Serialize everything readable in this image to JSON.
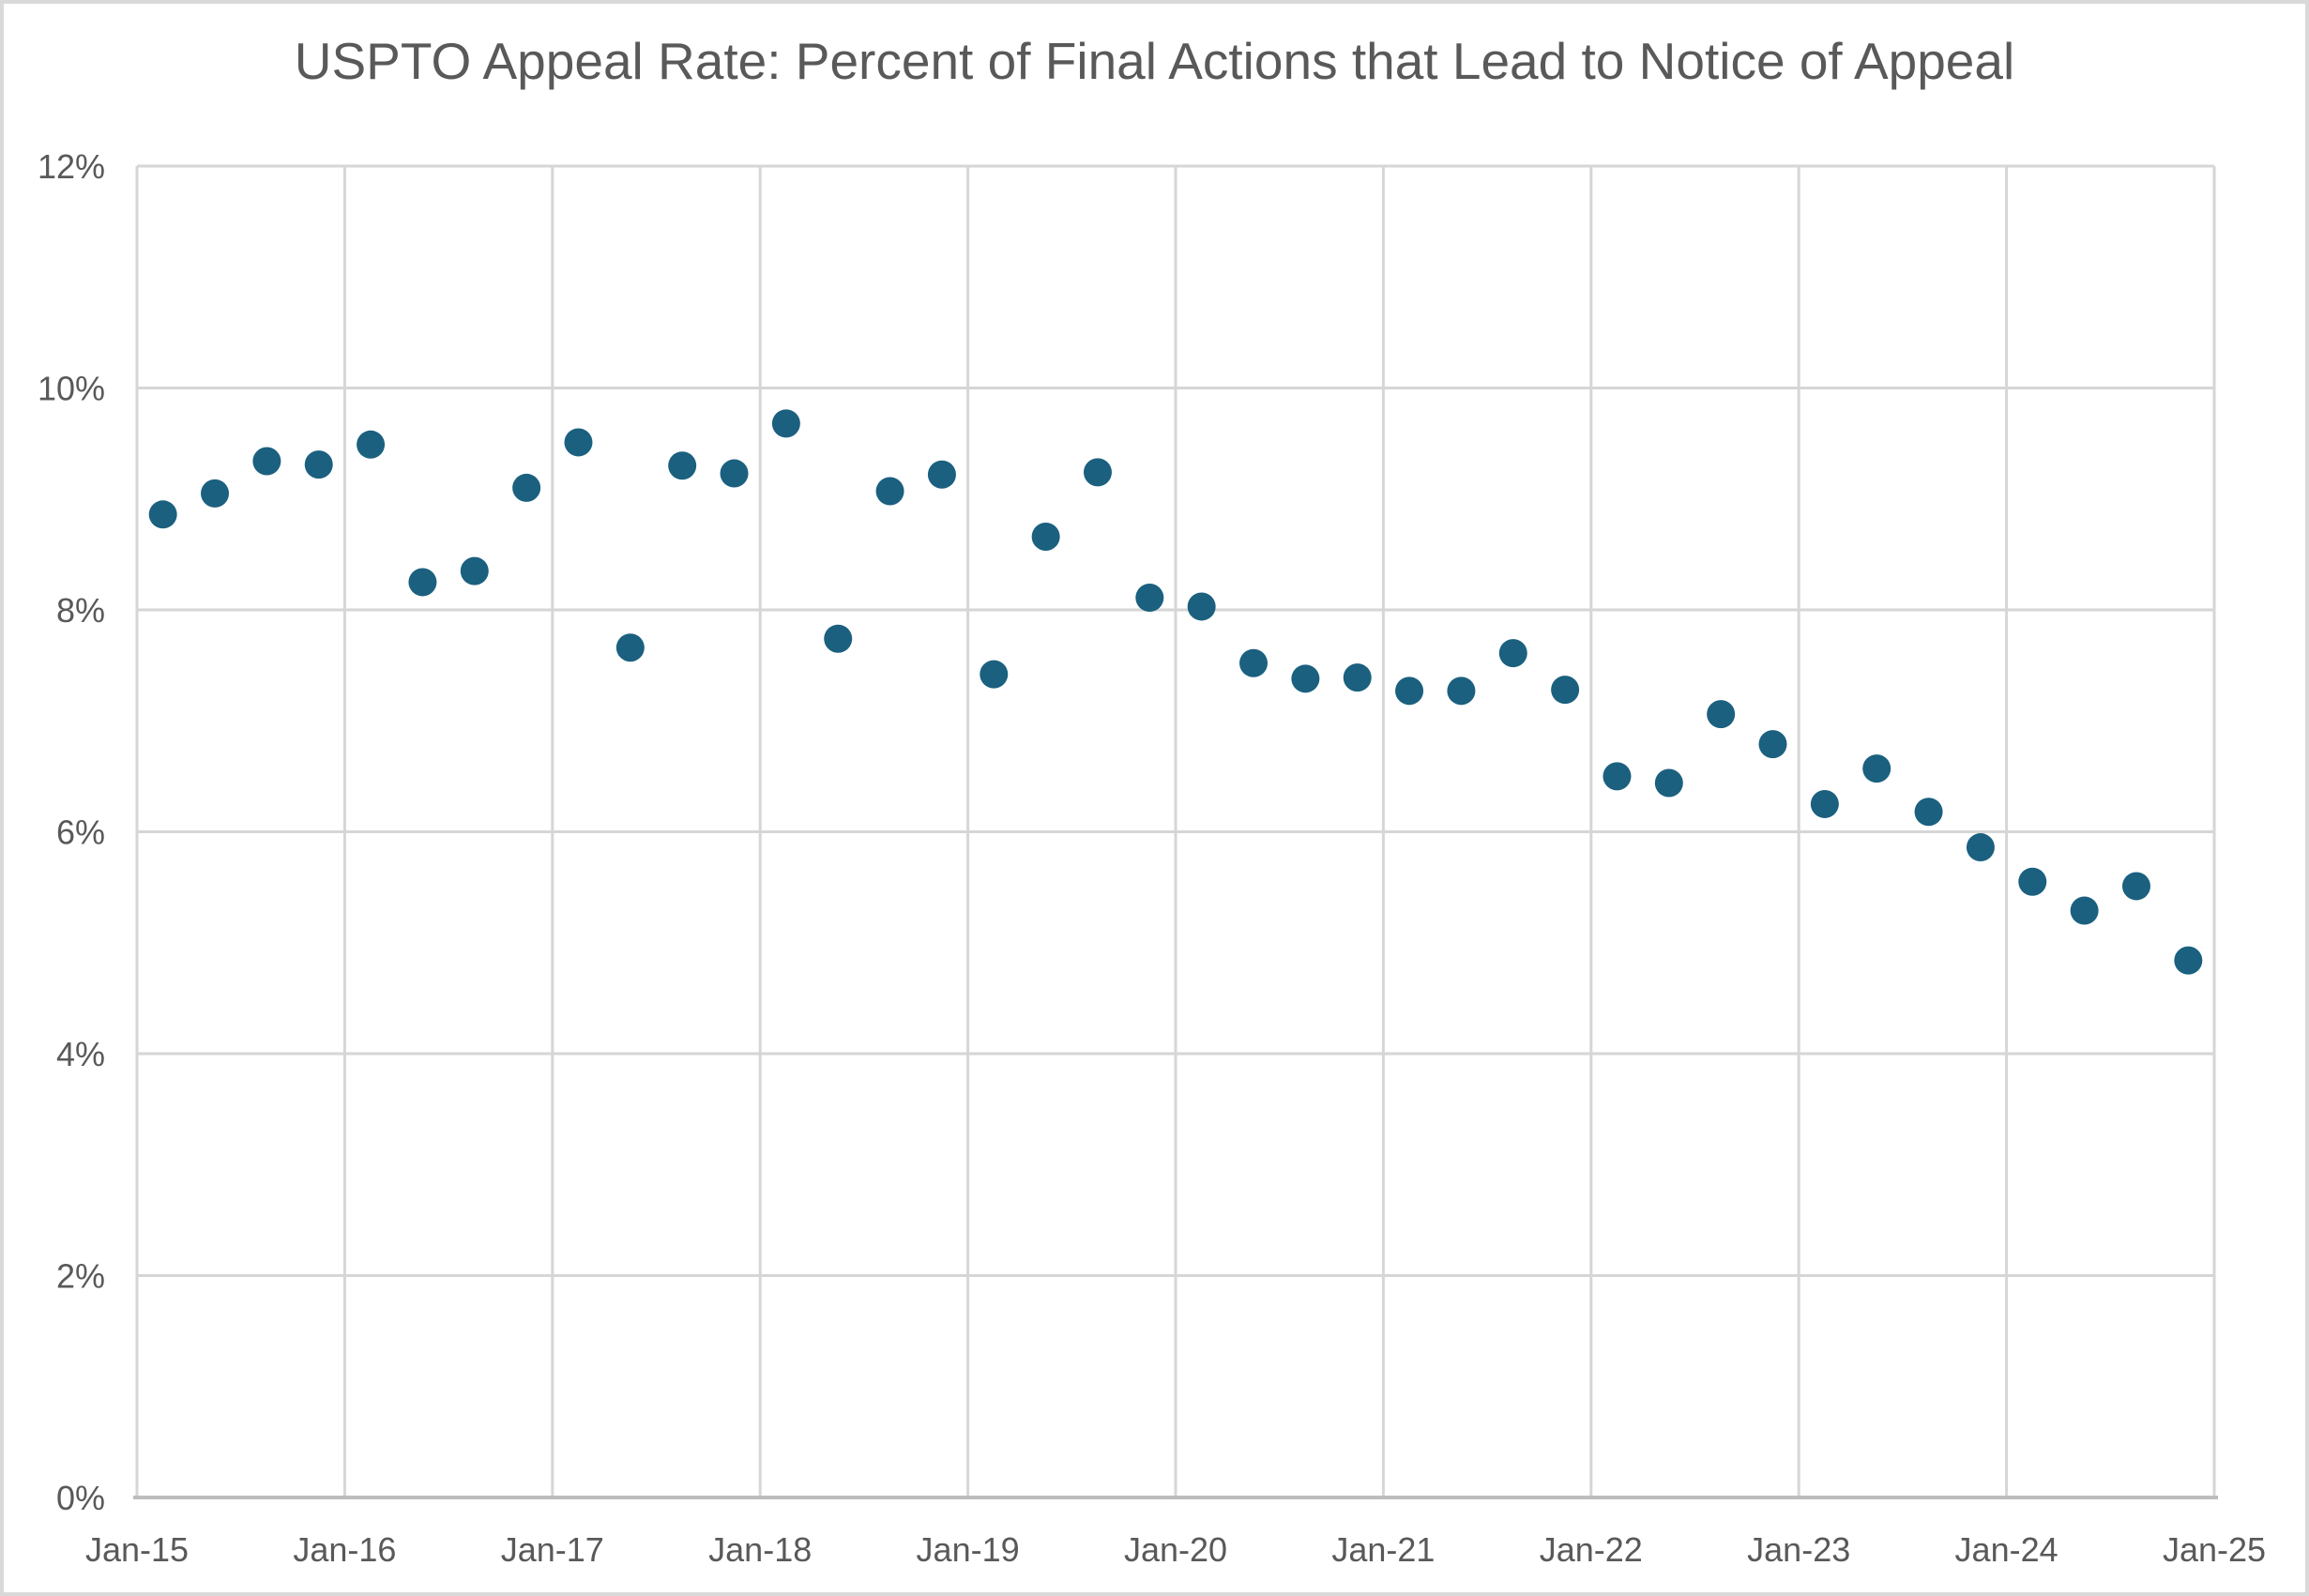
{
  "title": "USPTO Appeal Rate: Percent of Final Actions that Lead to Notice of Appeal",
  "colors": {
    "marker": "#1B607F",
    "grid": "#D6D6D6",
    "axis_line": "#BDBDBD",
    "text": "#595959",
    "frame_border": "#D9D9D9",
    "background": "#FFFFFF"
  },
  "chart_data": {
    "type": "scatter",
    "title": "USPTO Appeal Rate: Percent of Final Actions that Lead to Notice of Appeal",
    "xlabel": "",
    "ylabel": "",
    "ylim": [
      0,
      12
    ],
    "y_tick_step": 2,
    "y_tick_labels": [
      "0%",
      "2%",
      "4%",
      "6%",
      "8%",
      "10%",
      "12%"
    ],
    "x_tick_labels": [
      "Jan-15",
      "Jan-16",
      "Jan-17",
      "Jan-18",
      "Jan-19",
      "Jan-20",
      "Jan-21",
      "Jan-22",
      "Jan-23",
      "Jan-24",
      "Jan-25"
    ],
    "x_span_years": 10,
    "points_per_year": 4,
    "grid": true,
    "legend_position": "none",
    "series": [
      {
        "name": "Appeal rate (% of final actions leading to notice of appeal)",
        "points": [
          {
            "quarter": "2015-Q1",
            "value": 8.86
          },
          {
            "quarter": "2015-Q2",
            "value": 9.05
          },
          {
            "quarter": "2015-Q3",
            "value": 9.34
          },
          {
            "quarter": "2015-Q4",
            "value": 9.31
          },
          {
            "quarter": "2016-Q1",
            "value": 9.49
          },
          {
            "quarter": "2016-Q2",
            "value": 8.25
          },
          {
            "quarter": "2016-Q3",
            "value": 8.35
          },
          {
            "quarter": "2016-Q4",
            "value": 9.1
          },
          {
            "quarter": "2017-Q1",
            "value": 9.51
          },
          {
            "quarter": "2017-Q2",
            "value": 7.66
          },
          {
            "quarter": "2017-Q3",
            "value": 9.3
          },
          {
            "quarter": "2017-Q4",
            "value": 9.23
          },
          {
            "quarter": "2018-Q1",
            "value": 9.68
          },
          {
            "quarter": "2018-Q2",
            "value": 7.74
          },
          {
            "quarter": "2018-Q3",
            "value": 9.07
          },
          {
            "quarter": "2018-Q4",
            "value": 9.22
          },
          {
            "quarter": "2019-Q1",
            "value": 7.42
          },
          {
            "quarter": "2019-Q2",
            "value": 8.66
          },
          {
            "quarter": "2019-Q3",
            "value": 9.24
          },
          {
            "quarter": "2019-Q4",
            "value": 8.11
          },
          {
            "quarter": "2020-Q1",
            "value": 8.03
          },
          {
            "quarter": "2020-Q2",
            "value": 7.52
          },
          {
            "quarter": "2020-Q3",
            "value": 7.38
          },
          {
            "quarter": "2020-Q4",
            "value": 7.39
          },
          {
            "quarter": "2021-Q1",
            "value": 7.27
          },
          {
            "quarter": "2021-Q2",
            "value": 7.27
          },
          {
            "quarter": "2021-Q3",
            "value": 7.61
          },
          {
            "quarter": "2021-Q4",
            "value": 7.28
          },
          {
            "quarter": "2022-Q1",
            "value": 6.5
          },
          {
            "quarter": "2022-Q2",
            "value": 6.44
          },
          {
            "quarter": "2022-Q3",
            "value": 7.06
          },
          {
            "quarter": "2022-Q4",
            "value": 6.79
          },
          {
            "quarter": "2023-Q1",
            "value": 6.25
          },
          {
            "quarter": "2023-Q2",
            "value": 6.57
          },
          {
            "quarter": "2023-Q3",
            "value": 6.18
          },
          {
            "quarter": "2023-Q4",
            "value": 5.86
          },
          {
            "quarter": "2024-Q1",
            "value": 5.55
          },
          {
            "quarter": "2024-Q2",
            "value": 5.29
          },
          {
            "quarter": "2024-Q3",
            "value": 5.51
          },
          {
            "quarter": "2024-Q4",
            "value": 4.84
          }
        ]
      }
    ]
  }
}
